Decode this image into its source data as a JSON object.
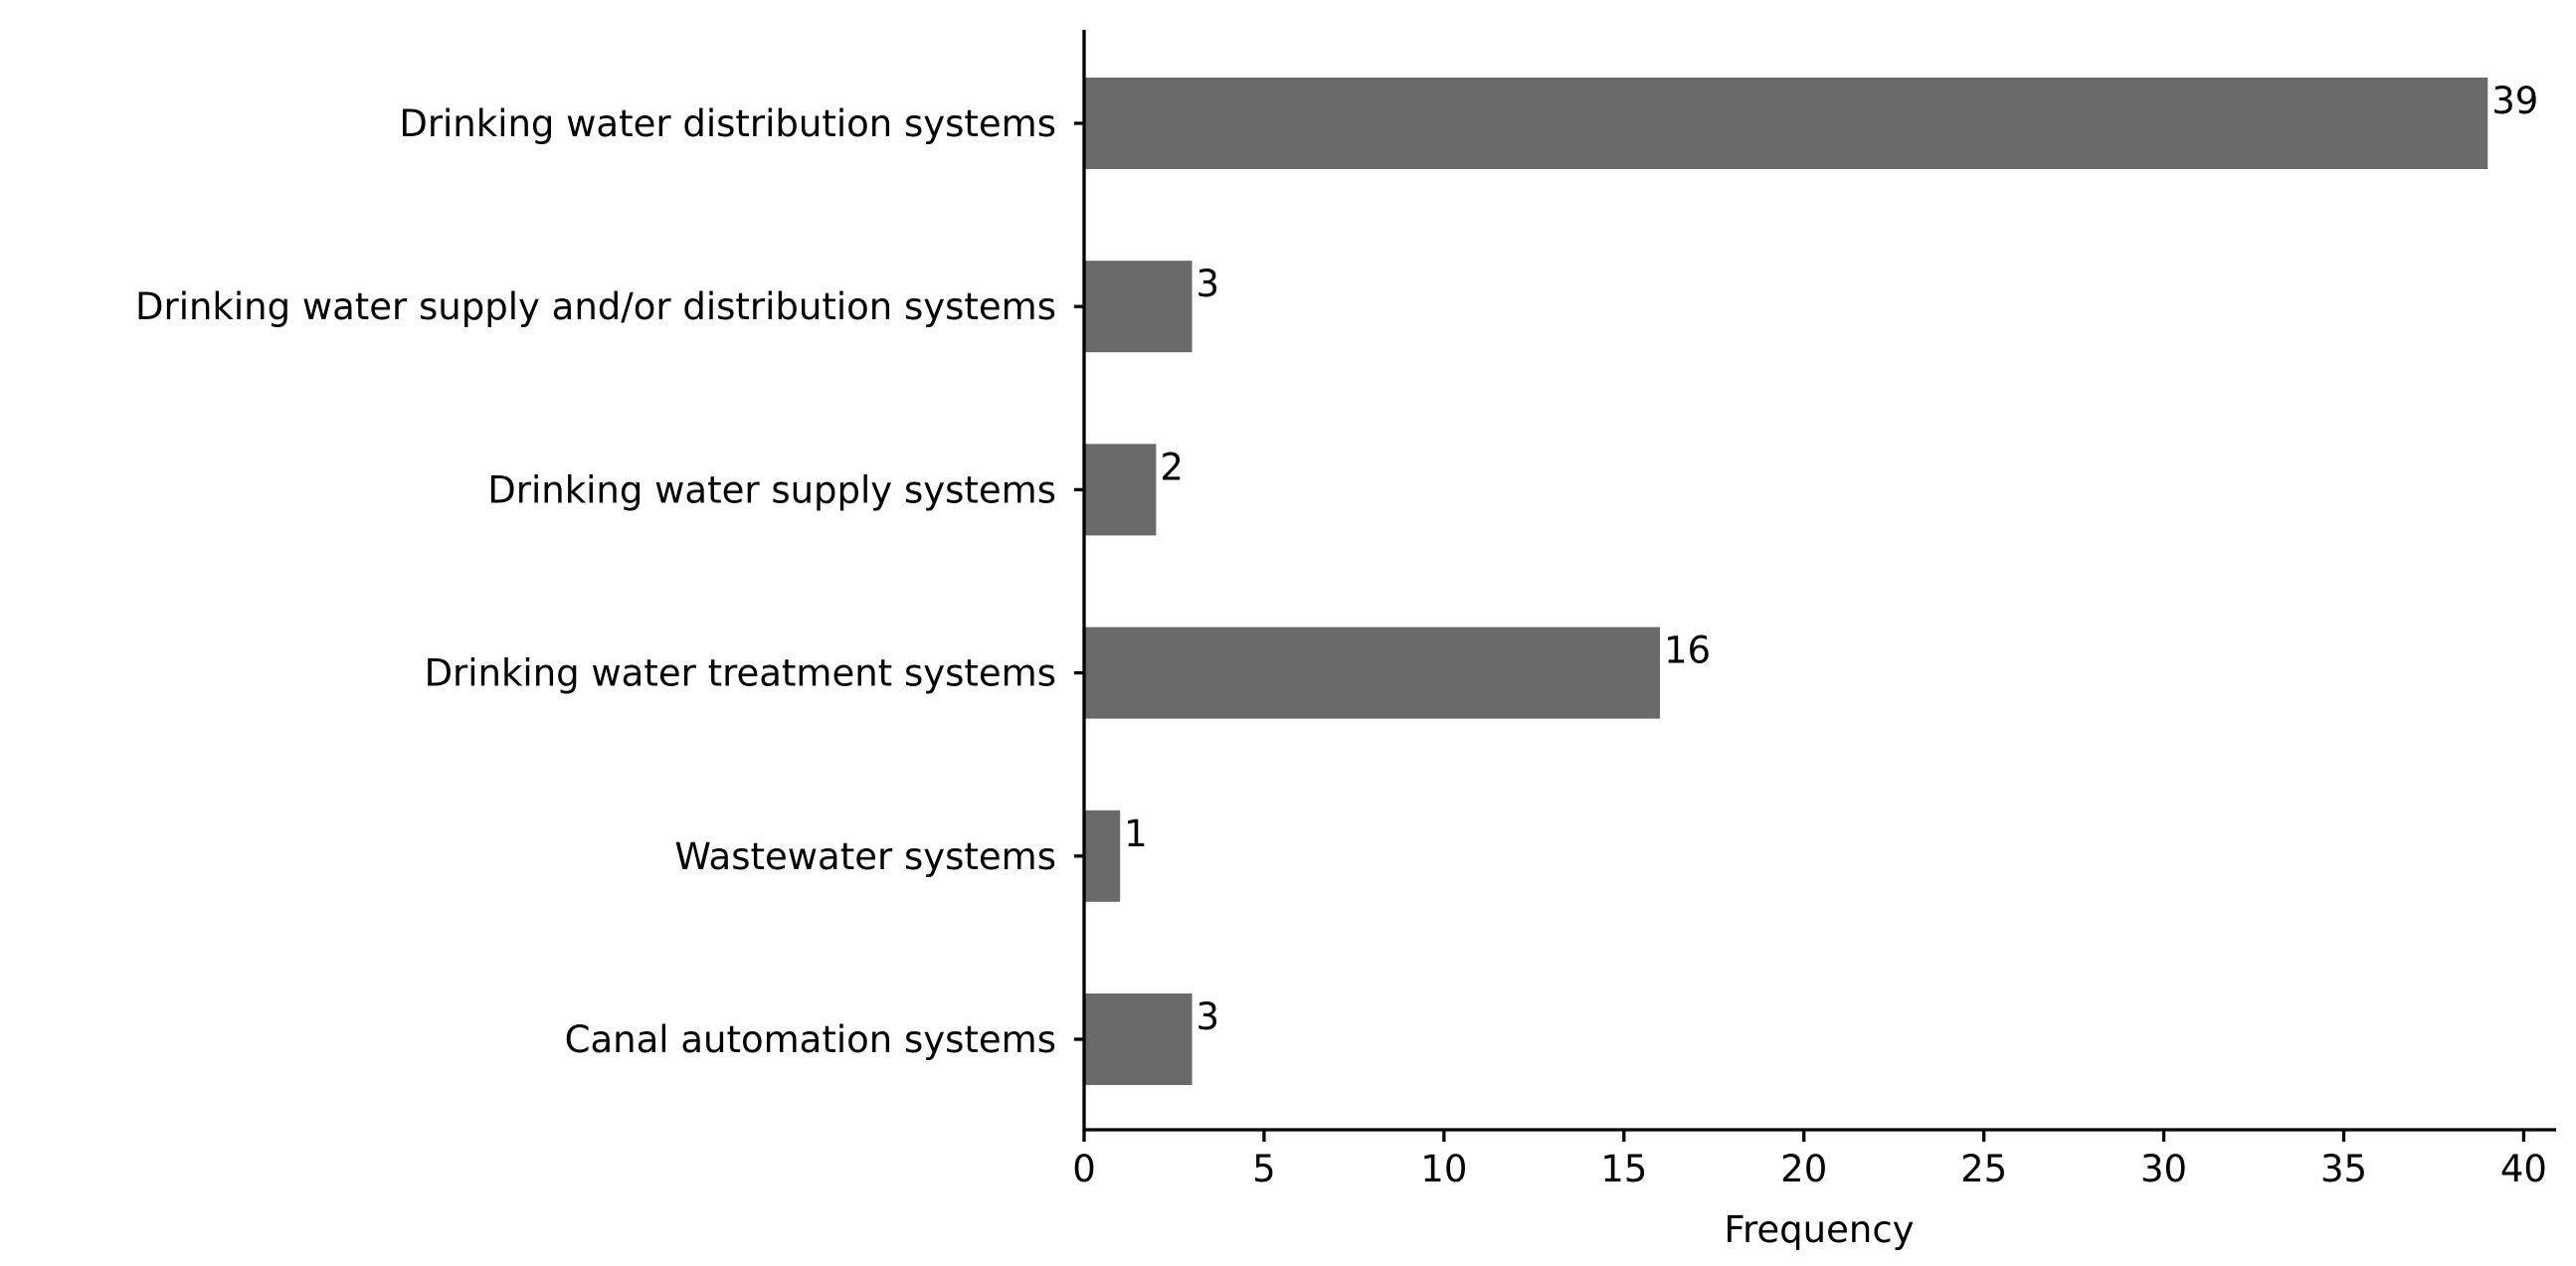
{
  "chart_data": {
    "type": "bar",
    "orientation": "horizontal",
    "categories": [
      "Drinking water distribution systems",
      "Drinking water supply and/or distribution systems",
      "Drinking water supply systems",
      "Drinking water treatment systems",
      "Wastewater systems",
      "Canal automation systems"
    ],
    "values": [
      39,
      3,
      2,
      16,
      1,
      3
    ],
    "data_labels": [
      "39",
      "3",
      "2",
      "16",
      "1",
      "3"
    ],
    "title": "",
    "xlabel": "Frequency",
    "ylabel": "",
    "xlim": [
      0,
      40.9
    ],
    "xticks": [
      0,
      5,
      10,
      15,
      20,
      25,
      30,
      35,
      40
    ],
    "xtick_labels": [
      "0",
      "5",
      "10",
      "15",
      "20",
      "25",
      "30",
      "35",
      "40"
    ],
    "grid": false,
    "legend": "none",
    "bar_color": "#696969",
    "spines": "left and bottom only"
  }
}
